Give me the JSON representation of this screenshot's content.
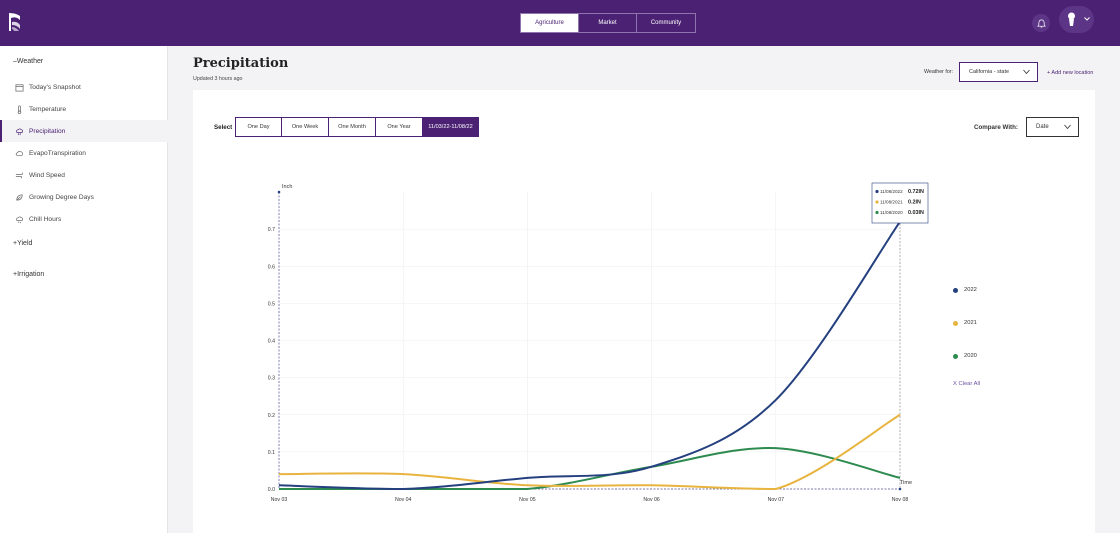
{
  "topnav": {
    "tabs": [
      "Agriculture",
      "Market",
      "Community"
    ],
    "active": 0
  },
  "sidebar": {
    "weather_group": "Weather",
    "weather_items": [
      "Today's Snapshot",
      "Temperature",
      "Precipitation",
      "EvapoTranspiration",
      "Wind Speed",
      "Growing Degree Days",
      "Chill Hours"
    ],
    "active_item": 2,
    "yield_group": "Yield",
    "irrigation_group": "Irrigation"
  },
  "header": {
    "title": "Precipitation",
    "updated": "Updated 3 hours ago",
    "weather_for_label": "Weather for:",
    "weather_for_value": "California - state",
    "add_location": "+ Add new location"
  },
  "controls": {
    "select_label": "Select",
    "ranges": [
      "One Day",
      "One Week",
      "One Month",
      "One Year",
      "11/03/22-11/08/22"
    ],
    "active_range": 4,
    "compare_label": "Compare With:",
    "compare_value": "Date"
  },
  "legend": {
    "clear_all": "X Clear All"
  },
  "tooltip": {
    "rows": [
      {
        "date": "11/08/2022",
        "value": "0.72IN"
      },
      {
        "date": "11/08/2021",
        "value": "0.2IN"
      },
      {
        "date": "11/08/2020",
        "value": "0.03IN"
      }
    ]
  },
  "colors": {
    "brand": "#4b2173",
    "s2022": "#25407f",
    "s2021": "#e8b43f",
    "s2020": "#2e8b4f"
  },
  "chart_data": {
    "type": "line",
    "ylabel": "Inch",
    "xlabel": "Time",
    "categories": [
      "Nov 03",
      "Nov 04",
      "Nov 05",
      "Nov 06",
      "Nov 07",
      "Nov 08"
    ],
    "yticks": [
      "0.0",
      "0.1",
      "0.2",
      "0.3",
      "0.4",
      "0.5",
      "0.6",
      "0.7"
    ],
    "ylim": [
      0,
      0.8
    ],
    "grid": true,
    "legend_position": "right",
    "series": [
      {
        "name": "2022",
        "color": "#25407f",
        "values": [
          0.01,
          0.0,
          0.03,
          0.06,
          0.24,
          0.72
        ]
      },
      {
        "name": "2021",
        "color": "#e8b43f",
        "values": [
          0.04,
          0.04,
          0.01,
          0.01,
          0.0,
          0.2
        ]
      },
      {
        "name": "2020",
        "color": "#2e8b4f",
        "values": [
          0.0,
          0.0,
          0.0,
          0.06,
          0.11,
          0.03
        ]
      }
    ]
  }
}
